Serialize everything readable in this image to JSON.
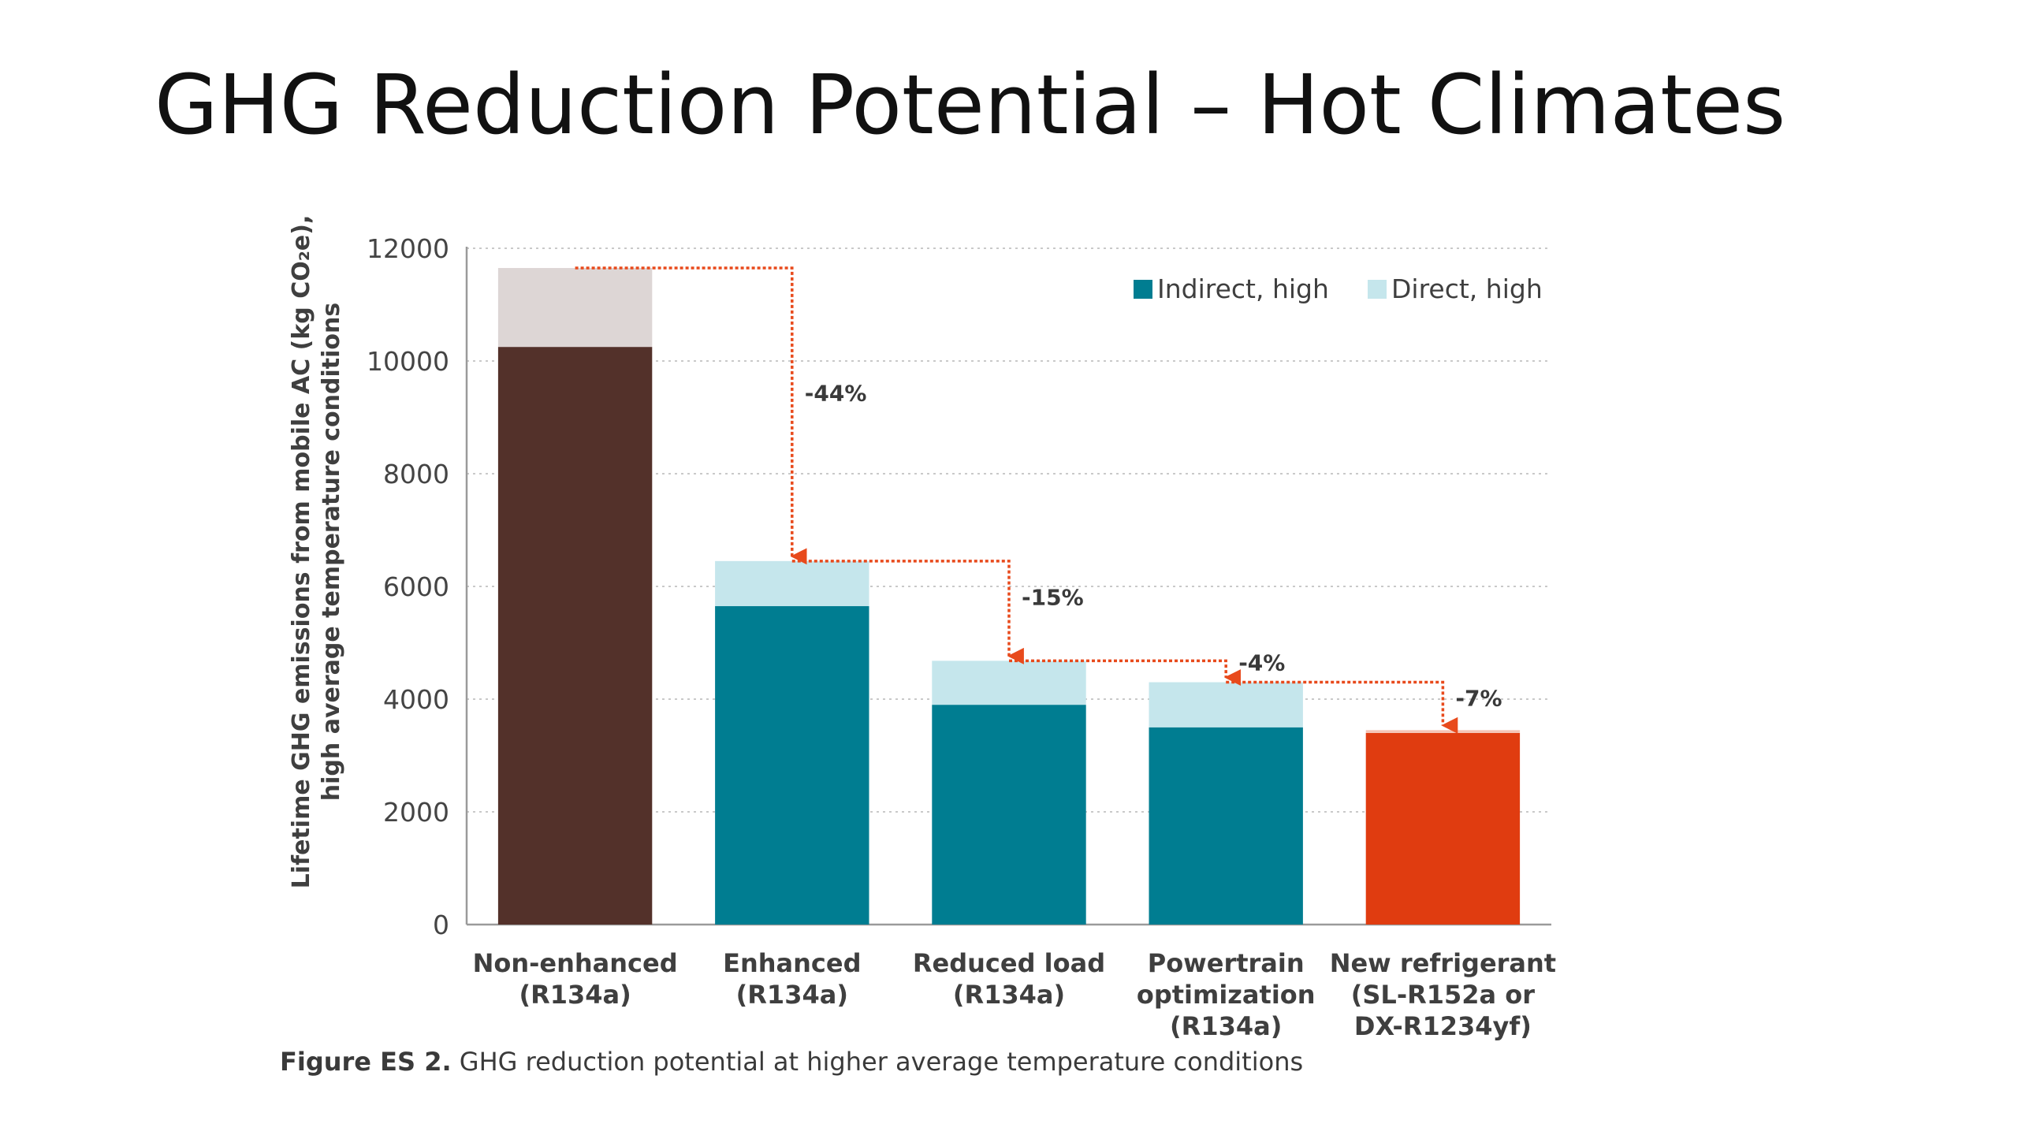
{
  "slide": {
    "title": "GHG Reduction Potential – Hot Climates"
  },
  "caption": {
    "label": "Figure ES 2.",
    "text": "GHG reduction potential at higher average temperature conditions"
  },
  "chart_data": {
    "type": "bar",
    "stacked": true,
    "title": "",
    "xlabel": "",
    "ylabel": "Lifetime GHG emissions from mobile AC (kg CO2e), high average temperature conditions",
    "ylabel_lines": [
      "Lifetime GHG emissions from mobile AC (kg CO₂e),",
      "high average temperature conditions"
    ],
    "ylim": [
      0,
      12000
    ],
    "yticks": [
      0,
      2000,
      4000,
      6000,
      8000,
      10000,
      12000
    ],
    "grid": true,
    "legend_position": "top-right",
    "categories": [
      [
        "Non-enhanced",
        "(R134a)"
      ],
      [
        "Enhanced",
        "(R134a)"
      ],
      [
        "Reduced load",
        "(R134a)"
      ],
      [
        "Powertrain",
        "optimization",
        "(R134a)"
      ],
      [
        "New refrigerant",
        "(SL-R152a or",
        "DX-R1234yf)"
      ]
    ],
    "series": [
      {
        "name": "Indirect, high",
        "color": "#007d91",
        "values": [
          10250,
          5650,
          3900,
          3500,
          3400
        ]
      },
      {
        "name": "Direct, high",
        "color": "#c5e6ec",
        "values": [
          1400,
          800,
          780,
          800,
          50
        ]
      }
    ],
    "bar_colors_indirect": [
      "#53312a",
      "#007d91",
      "#007d91",
      "#007d91",
      "#e03c10"
    ],
    "bar_colors_direct": [
      "#ddd6d5",
      "#c5e6ec",
      "#c5e6ec",
      "#c5e6ec",
      "#f5c4b6"
    ],
    "annotations": [
      {
        "text": "-44%",
        "from": 0,
        "to": 1
      },
      {
        "text": "-15%",
        "from": 1,
        "to": 2
      },
      {
        "text": "-4%",
        "from": 2,
        "to": 3
      },
      {
        "text": "-7%",
        "from": 3,
        "to": 4
      }
    ],
    "arrow_color": "#e84a1c"
  }
}
